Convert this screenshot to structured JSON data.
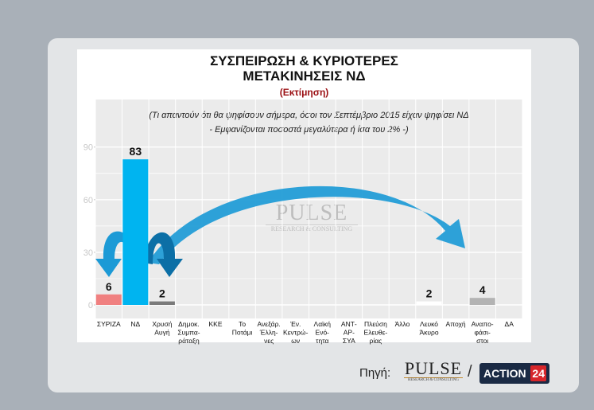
{
  "header": {
    "title_line1": "ΣΥΣΠΕΙΡΩΣΗ & ΚΥΡΙΟΤΕΡΕΣ",
    "title_line2": "ΜΕΤΑΚΙΝΗΣΕΙΣ ΝΔ",
    "subtitle": "(Εκτίμηση)",
    "note_line1": "(Τι απαντούν ότι θα ψηφίσουν σήμερα, όσοι τον Σεπτέμβριο 2015 είχαν ψηφίσει ΝΔ",
    "note_line2": "- Εμφανίζονται ποσοστά μεγαλύτερα ή ίσα του 2% -)"
  },
  "watermark": {
    "word": "PULSE",
    "tagline": "RESEARCH & CONSULTING"
  },
  "footer": {
    "source_label": "Πηγή:",
    "pulse_word": "PULSE",
    "pulse_tagline": "RESEARCH & CONSULTING",
    "separator": "/",
    "action_word": "ACTION",
    "action_num": "24"
  },
  "colors": {
    "pink": "#f08080",
    "blue": "#00b4f0",
    "grey_dark": "#7a7a7a",
    "grey_light": "#b3b3b3",
    "arrow_blue": "#1c9ad6",
    "arrow_dark": "#0c6fa6"
  },
  "chart_data": {
    "type": "bar",
    "title": "ΣΥΣΠΕΙΡΩΣΗ & ΚΥΡΙΟΤΕΡΕΣ ΜΕΤΑΚΙΝΗΣΕΙΣ ΝΔ",
    "subtitle": "(Εκτίμηση)",
    "categories": [
      [
        "ΣΥΡΙΖΑ"
      ],
      [
        "ΝΔ"
      ],
      [
        "Χρυσή",
        "Αυγή"
      ],
      [
        "Δημοκ.",
        "Συμπα-",
        "ράταξη"
      ],
      [
        "ΚΚΕ"
      ],
      [
        "Το",
        "Ποτάμι"
      ],
      [
        "Ανεξάρ.",
        "Έλλη-",
        "νες"
      ],
      [
        "Έν.",
        "Κεντρώ-",
        "ων"
      ],
      [
        "Λαϊκή",
        "Ενό-",
        "τητα"
      ],
      [
        "ΑΝΤ-",
        "ΑΡ-",
        "ΣΥΑ"
      ],
      [
        "Πλεύση",
        "Ελευθε-",
        "ρίας"
      ],
      [
        "Άλλο"
      ],
      [
        "Λευκό",
        "Άκυρο"
      ],
      [
        "Αποχή"
      ],
      [
        "Αναπο-",
        "φάσι-",
        "στοι"
      ],
      [
        "ΔΑ"
      ]
    ],
    "values": [
      6,
      83,
      2,
      null,
      null,
      null,
      null,
      null,
      null,
      null,
      null,
      null,
      2,
      null,
      4,
      null
    ],
    "labels": [
      "6",
      "83",
      "2",
      "",
      "",
      "",
      "",
      "",
      "",
      "",
      "",
      "",
      "2",
      "",
      "4",
      ""
    ],
    "bar_colors": [
      "pink",
      "blue",
      "grey_dark",
      "",
      "",
      "",
      "",
      "",
      "",
      "",
      "",
      "",
      "white",
      "",
      "grey_light",
      ""
    ],
    "yticks": [
      0,
      30,
      60,
      90
    ],
    "ylim": [
      -5,
      97
    ],
    "grid": true,
    "xlabel": "",
    "ylabel": ""
  }
}
